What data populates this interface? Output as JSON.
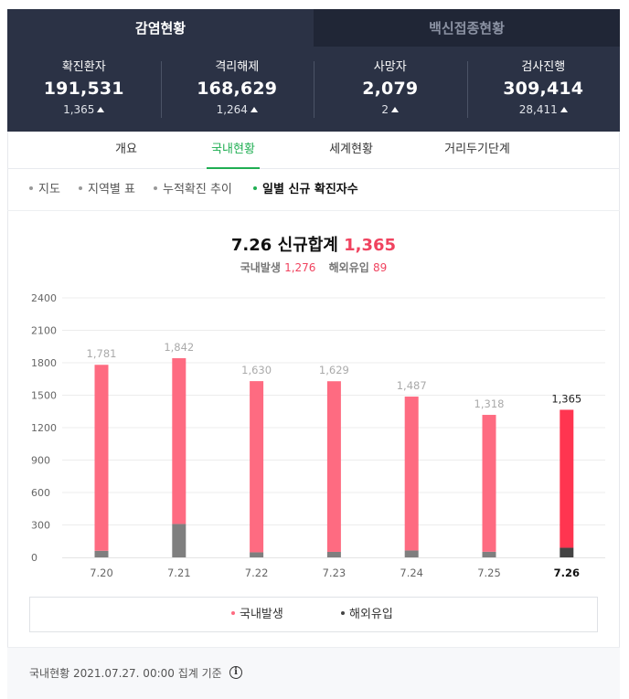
{
  "top_tabs": [
    {
      "label": "감염현황",
      "active": true
    },
    {
      "label": "백신접종현황",
      "active": false
    }
  ],
  "stats": [
    {
      "label": "확진환자",
      "value": "191,531",
      "delta": "1,365"
    },
    {
      "label": "격리해제",
      "value": "168,629",
      "delta": "1,264"
    },
    {
      "label": "사망자",
      "value": "2,079",
      "delta": "2"
    },
    {
      "label": "검사진행",
      "value": "309,414",
      "delta": "28,411"
    }
  ],
  "sub_tabs": [
    {
      "label": "개요",
      "active": false
    },
    {
      "label": "국내현황",
      "active": true
    },
    {
      "label": "세계현황",
      "active": false
    },
    {
      "label": "거리두기단계",
      "active": false
    }
  ],
  "chips": [
    {
      "label": "지도",
      "active": false
    },
    {
      "label": "지역별 표",
      "active": false
    },
    {
      "label": "누적확진 추이",
      "active": false
    },
    {
      "label": "일별 신규 확진자수",
      "active": true
    }
  ],
  "chart_header": {
    "date": "7.26",
    "title_label": "신규합계",
    "total": "1,365",
    "domestic_label": "국내발생",
    "domestic_value": "1,276",
    "imported_label": "해외유입",
    "imported_value": "89"
  },
  "chart_data": {
    "type": "bar",
    "stacked": true,
    "categories": [
      "7.20",
      "7.21",
      "7.22",
      "7.23",
      "7.24",
      "7.25",
      "7.26"
    ],
    "totals": [
      1781,
      1842,
      1630,
      1629,
      1487,
      1318,
      1365
    ],
    "total_labels": [
      "1,781",
      "1,842",
      "1,630",
      "1,629",
      "1,487",
      "1,318",
      "1,365"
    ],
    "series": [
      {
        "name": "국내발생",
        "values": [
          1720,
          1533,
          1583,
          1578,
          1423,
          1266,
          1276
        ],
        "color": "#fe6b81",
        "highlight_color": "#ff3550"
      },
      {
        "name": "해외유입",
        "values": [
          61,
          309,
          47,
          51,
          64,
          52,
          89
        ],
        "color": "#7f7f7f",
        "highlight_color": "#444444"
      }
    ],
    "ylim": [
      0,
      2400
    ],
    "yticks": [
      0,
      300,
      600,
      900,
      1200,
      1500,
      1800,
      2100,
      2400
    ],
    "highlight_index": 6,
    "grid": true,
    "legend": "bottom"
  },
  "legend": [
    {
      "label": "국내발생",
      "color": "#fe6b81"
    },
    {
      "label": "해외유입",
      "color": "#444444"
    }
  ],
  "footer": {
    "text": "국내현황 2021.07.27. 00:00 집계 기준",
    "info_icon": "info-icon"
  }
}
